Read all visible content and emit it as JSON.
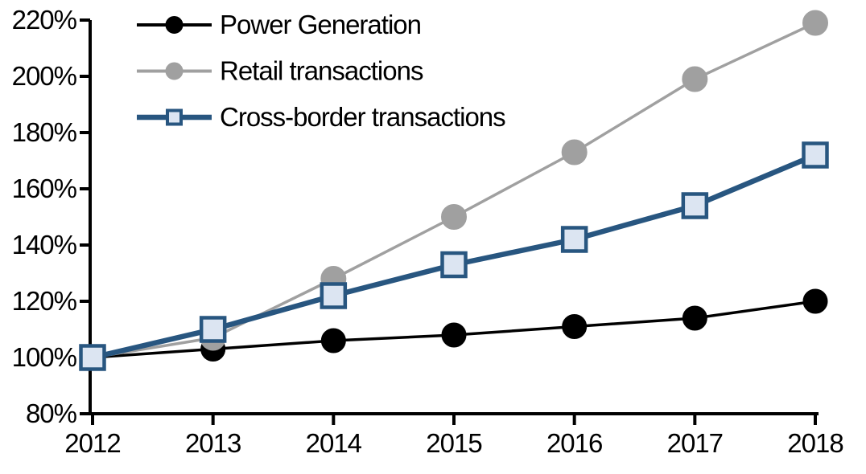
{
  "chart_data": {
    "type": "line",
    "title": "",
    "xlabel": "",
    "ylabel": "",
    "grid": false,
    "legend_position": "top-left",
    "axis_color": "#000000",
    "background_color": "#ffffff",
    "x": [
      "2012",
      "2013",
      "2014",
      "2015",
      "2016",
      "2017",
      "2018"
    ],
    "xticklabels": [
      "2012",
      "2013",
      "2014",
      "2015",
      "2016",
      "2017",
      "2018"
    ],
    "ylim": [
      80,
      220
    ],
    "ytick_step": 20,
    "ytick_values": [
      80,
      100,
      120,
      140,
      160,
      180,
      200,
      220
    ],
    "yticklabels": [
      "80%",
      "100%",
      "120%",
      "140%",
      "160%",
      "180%",
      "200%",
      "220%"
    ],
    "series": [
      {
        "name": "Power Generation",
        "values": [
          100,
          103,
          106,
          108,
          111,
          114,
          120
        ],
        "color": "#000000",
        "marker": "circle",
        "marker_fill": "#000000",
        "marker_stroke": "#000000",
        "line_width": 3.5
      },
      {
        "name": "Retail transactions",
        "values": [
          100,
          107,
          128,
          150,
          173,
          199,
          219
        ],
        "color": "#A0A0A0",
        "marker": "circle",
        "marker_fill": "#A0A0A0",
        "marker_stroke": "#A0A0A0",
        "line_width": 3.5
      },
      {
        "name": "Cross-border transactions",
        "values": [
          100,
          110,
          122,
          133,
          142,
          154,
          172
        ],
        "color": "#285680",
        "marker": "square",
        "marker_fill": "#DCE5F2",
        "marker_stroke": "#285680",
        "line_width": 6.5
      }
    ]
  }
}
